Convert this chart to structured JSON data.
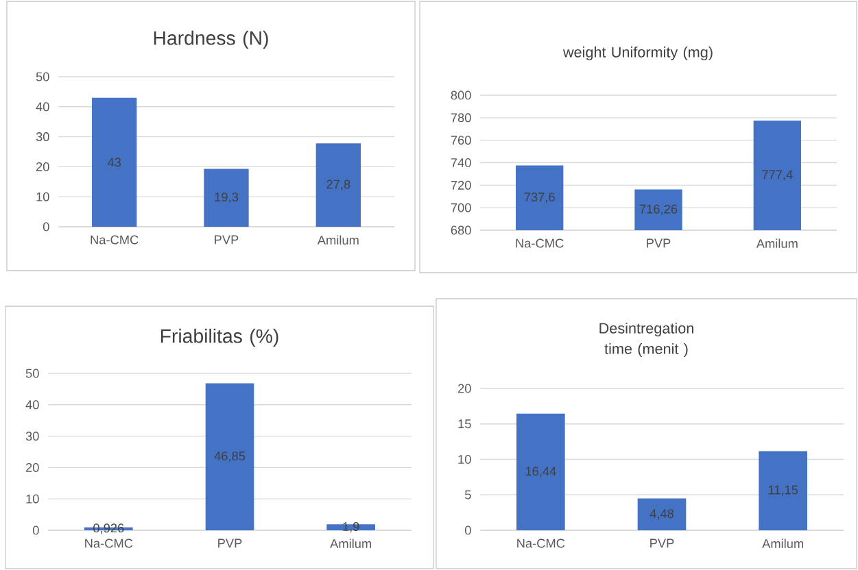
{
  "chart_data": [
    {
      "type": "bar",
      "title": "Hardness (N)",
      "categories": [
        "Na-CMC",
        "PVP",
        "Amilum"
      ],
      "values": [
        43,
        19.3,
        27.8
      ],
      "value_labels": [
        "43",
        "19,3",
        "27,8"
      ],
      "color": "#4472c4",
      "ylim": [
        0,
        50
      ],
      "yticks": [
        0,
        10,
        20,
        30,
        40,
        50
      ],
      "grid": "y"
    },
    {
      "type": "bar",
      "title": "weight Uniformity (mg)",
      "categories": [
        "Na-CMC",
        "PVP",
        "Amilum"
      ],
      "values": [
        737.6,
        716.26,
        777.4
      ],
      "value_labels": [
        "737,6",
        "716,26",
        "777,4"
      ],
      "color": "#4472c4",
      "ylim": [
        680,
        800
      ],
      "yticks": [
        680,
        700,
        720,
        740,
        760,
        780,
        800
      ],
      "grid": "y"
    },
    {
      "type": "bar",
      "title": "Friabilitas (%)",
      "categories": [
        "Na-CMC",
        "PVP",
        "Amilum"
      ],
      "values": [
        0.926,
        46.85,
        1.9
      ],
      "value_labels": [
        "0,926",
        "46,85",
        "1,9"
      ],
      "color": "#4472c4",
      "ylim": [
        0,
        50
      ],
      "yticks": [
        0,
        10,
        20,
        30,
        40,
        50
      ],
      "grid": "y"
    },
    {
      "type": "bar",
      "title": "Desintregation time (menit )",
      "categories": [
        "Na-CMC",
        "PVP",
        "Amilum"
      ],
      "values": [
        16.44,
        4.48,
        11.15
      ],
      "value_labels": [
        "16,44",
        "4,48",
        "11,15"
      ],
      "color": "#4472c4",
      "ylim": [
        0,
        20
      ],
      "yticks": [
        0,
        5,
        10,
        15,
        20
      ],
      "grid": "y"
    }
  ]
}
